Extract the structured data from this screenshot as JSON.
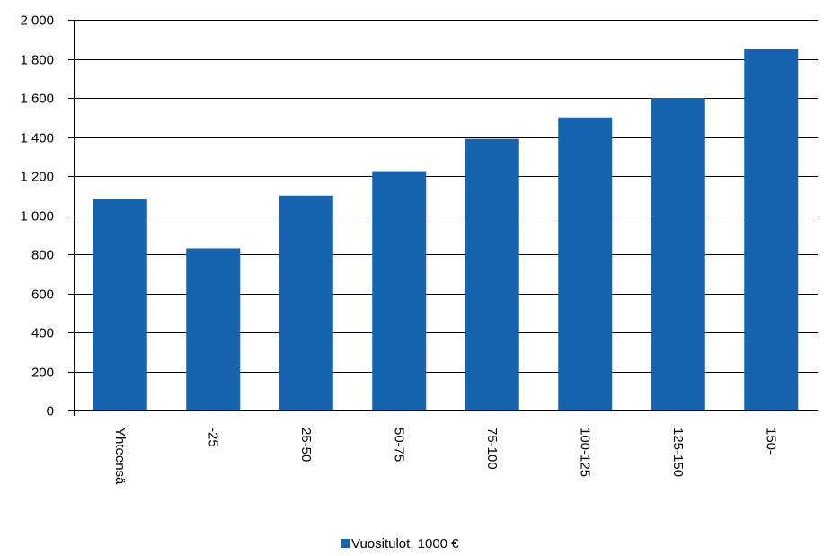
{
  "chart_data": {
    "type": "bar",
    "categories": [
      "Yhteensä",
      "-25",
      "25-50",
      "50-75",
      "75-100",
      "100-125",
      "125-150",
      "150-"
    ],
    "series": [
      {
        "name": "Vuositulot, 1000 €",
        "values": [
          1085,
          830,
          1100,
          1225,
          1390,
          1500,
          1600,
          1850
        ],
        "color": "#1764B0"
      }
    ],
    "y_ticks": [
      "0",
      "200",
      "400",
      "600",
      "800",
      "1 000",
      "1 200",
      "1 400",
      "1 600",
      "1 800",
      "2 000"
    ],
    "ylim": [
      0,
      2000
    ],
    "grid": true,
    "legend": "bottom-center",
    "title": "",
    "xlabel": "",
    "ylabel": ""
  }
}
